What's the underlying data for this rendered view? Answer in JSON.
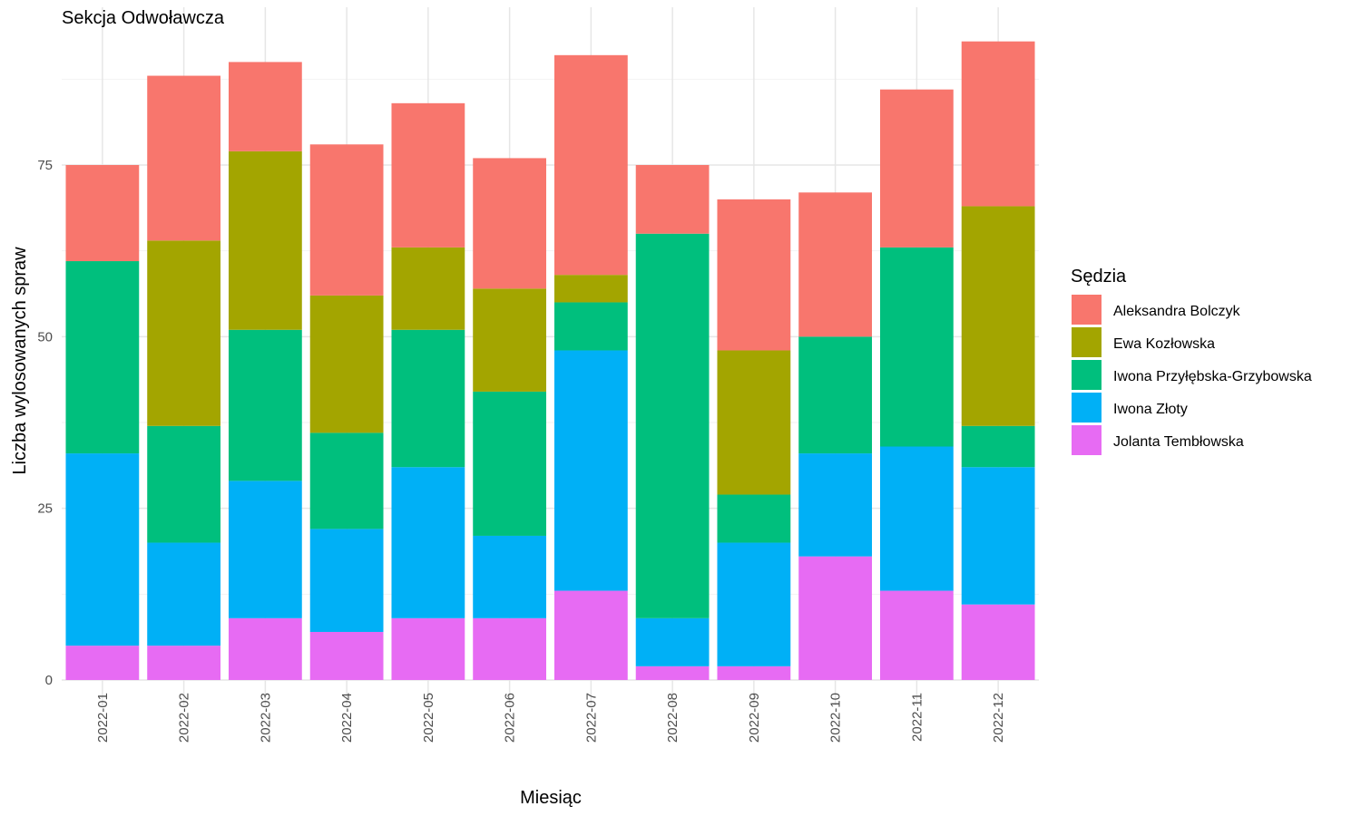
{
  "chart_data": {
    "type": "bar",
    "stacked": true,
    "title": "Sekcja Odwoławcza",
    "xlabel": "Miesiąc",
    "ylabel": "Liczba wylosowanych spraw",
    "categories": [
      "2022-01",
      "2022-02",
      "2022-03",
      "2022-04",
      "2022-05",
      "2022-06",
      "2022-07",
      "2022-08",
      "2022-09",
      "2022-10",
      "2022-11",
      "2022-12"
    ],
    "ylim": [
      0,
      95
    ],
    "yticks": [
      0,
      25,
      50,
      75
    ],
    "grid": true,
    "legend": {
      "title": "Sędzia",
      "position": "right"
    },
    "series": [
      {
        "name": "Jolanta Tembłowska",
        "color": "#E76BF3",
        "values": [
          5,
          5,
          9,
          7,
          9,
          9,
          13,
          2,
          2,
          18,
          13,
          11
        ]
      },
      {
        "name": "Iwona Złoty",
        "color": "#00B0F6",
        "values": [
          28,
          15,
          20,
          15,
          22,
          12,
          35,
          7,
          18,
          15,
          21,
          20
        ]
      },
      {
        "name": "Iwona Przyłębska-Grzybowska",
        "color": "#00BF7D",
        "values": [
          28,
          17,
          22,
          14,
          20,
          21,
          7,
          56,
          7,
          17,
          29,
          6
        ]
      },
      {
        "name": "Ewa Kozłowska",
        "color": "#A3A500",
        "values": [
          0,
          27,
          26,
          20,
          12,
          15,
          4,
          0,
          21,
          0,
          0,
          32
        ]
      },
      {
        "name": "Aleksandra Bolczyk",
        "color": "#F8766D",
        "values": [
          14,
          24,
          13,
          22,
          21,
          19,
          32,
          10,
          22,
          21,
          23,
          24
        ]
      }
    ],
    "legend_order": [
      "Aleksandra Bolczyk",
      "Ewa Kozłowska",
      "Iwona Przyłębska-Grzybowska",
      "Iwona Złoty",
      "Jolanta Tembłowska"
    ]
  }
}
